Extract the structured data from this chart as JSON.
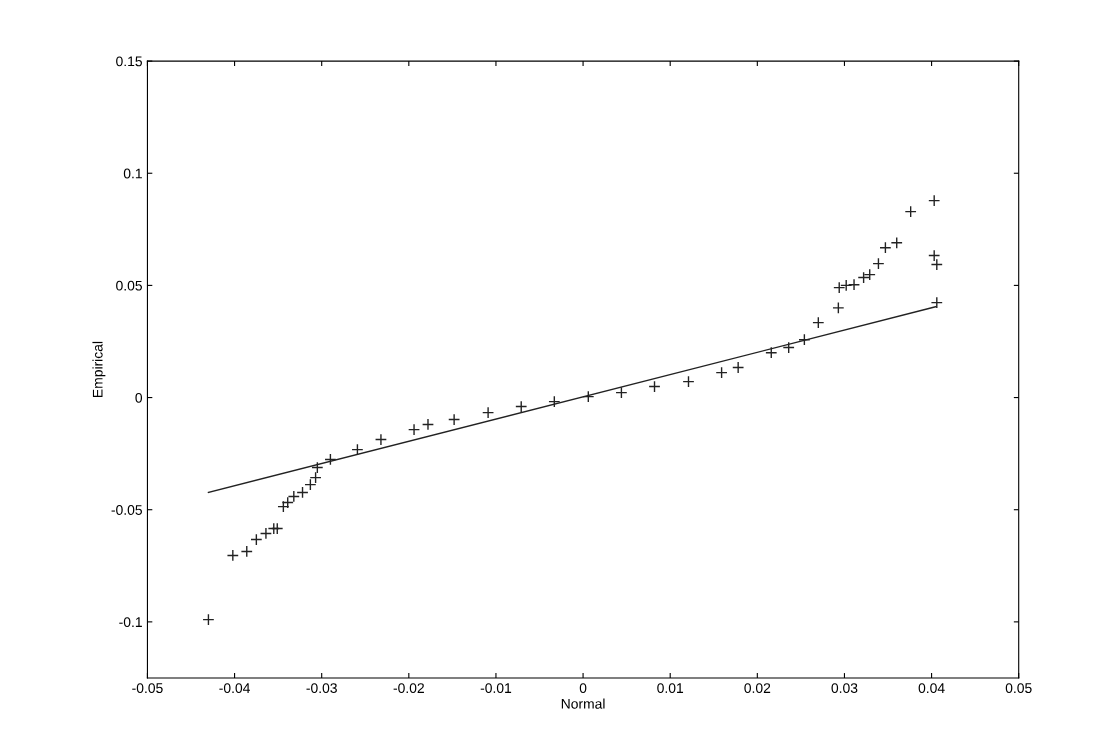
{
  "chart_data": {
    "type": "scatter",
    "xlabel": "Normal",
    "ylabel": "Empirical",
    "xlim": [
      -0.05,
      0.05
    ],
    "xticks": [
      -0.05,
      -0.04,
      -0.03,
      -0.02,
      -0.01,
      0,
      0.01,
      0.02,
      0.03,
      0.04,
      0.05
    ],
    "ylim": [
      -0.125,
      0.15
    ],
    "yticks": [
      -0.1,
      -0.05,
      0,
      0.05,
      0.1,
      0.15
    ],
    "grid": false,
    "marker": "cross",
    "series": [
      {
        "color": "#222222",
        "x": [
          -0.043,
          -0.0402,
          -0.0386,
          -0.0375,
          -0.0364,
          -0.0355,
          -0.0351,
          -0.0344,
          -0.0339,
          -0.0332,
          -0.0322,
          -0.0313,
          -0.0307,
          -0.0305,
          -0.029,
          -0.0259,
          -0.0232,
          -0.0194,
          -0.0178,
          -0.0148,
          -0.0109,
          -0.0071,
          -0.0033,
          0.0006,
          0.0044,
          0.0082,
          0.0121,
          0.0159,
          0.0178,
          0.0216,
          0.0236,
          0.0254,
          0.027,
          0.0293,
          0.0294,
          0.0302,
          0.0311,
          0.0322,
          0.0329,
          0.0339,
          0.0347,
          0.036,
          0.0376,
          0.0403,
          0.0403,
          0.0406,
          0.0406
        ],
        "values": [
          -0.099,
          -0.0704,
          -0.0686,
          -0.0633,
          -0.0606,
          -0.0584,
          -0.0584,
          -0.0486,
          -0.0468,
          -0.0441,
          -0.0423,
          -0.0388,
          -0.0357,
          -0.0312,
          -0.0276,
          -0.0232,
          -0.0187,
          -0.0143,
          -0.012,
          -0.0098,
          -0.0067,
          -0.004,
          -0.0018,
          0.0004,
          0.0022,
          0.0049,
          0.0071,
          0.0111,
          0.0134,
          0.02,
          0.0223,
          0.0258,
          0.0334,
          0.04,
          0.049,
          0.05,
          0.0503,
          0.0535,
          0.0548,
          0.0597,
          0.0668,
          0.069,
          0.0829,
          0.0878,
          0.0633,
          0.0593,
          0.0423
        ]
      },
      {
        "type": "line",
        "color": "#222222",
        "line_style": "solid",
        "marker": "none",
        "x": [
          -0.043,
          0.0405
        ],
        "values": [
          -0.0423,
          0.0405
        ]
      }
    ]
  }
}
